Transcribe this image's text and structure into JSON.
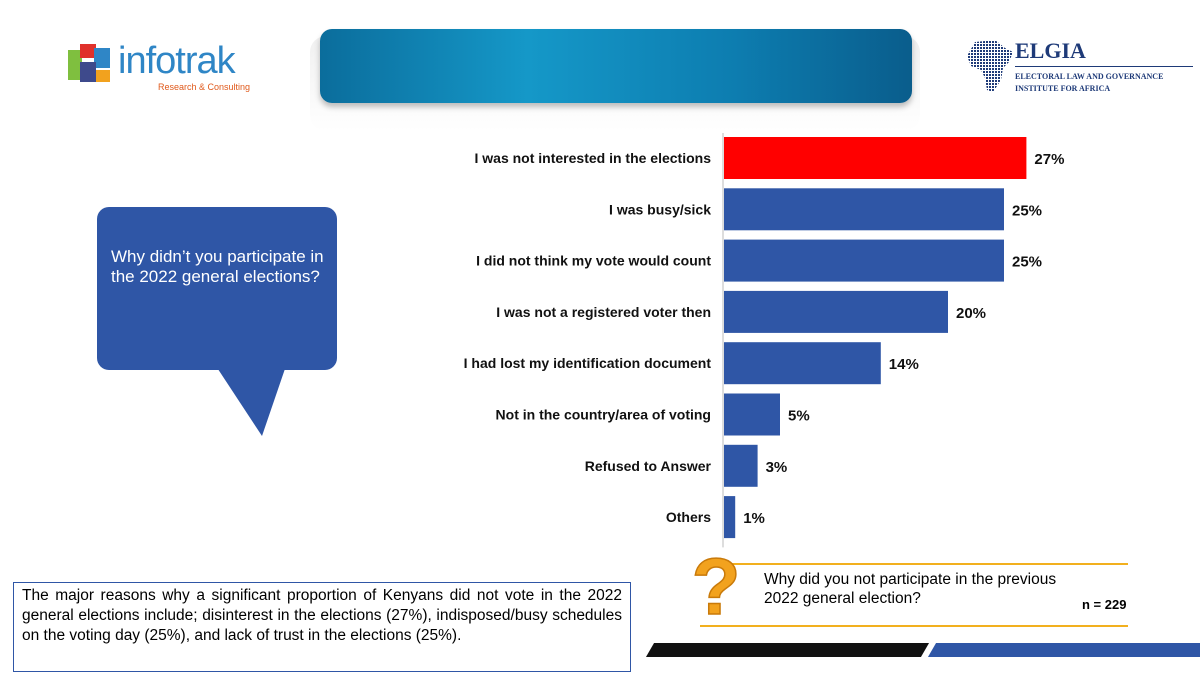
{
  "logos": {
    "infotrak_word": "infotrak",
    "infotrak_sub": "Research & Consulting",
    "elgia_name": "ELGIA",
    "elgia_line1": "ELECTORAL LAW AND GOVERNANCE",
    "elgia_line2": "INSTITUTE FOR AFRICA"
  },
  "question_bubble": "Why didn’t you participate in the 2022 general elections?",
  "summary": "The major reasons why a significant proportion of Kenyans did not vote in the 2022 general elections include;  disinterest in the elections (27%), indisposed/busy schedules on the voting day (25%), and lack of trust in the elections (25%).",
  "footer": {
    "question": "Why did you not participate in the previous 2022 general election?",
    "sample_size": "n = 229",
    "question_mark_icon": "question-mark-icon"
  },
  "colors": {
    "bar": "#2f56a6",
    "highlight": "#ff0000",
    "accent_gold": "#f2b01e"
  },
  "chart_data": {
    "type": "bar",
    "orientation": "horizontal",
    "categories": [
      "I was not interested in the elections",
      "I was busy/sick",
      "I did not think my vote would count",
      "I was not a registered voter then",
      "I had lost my identification document",
      "Not in the country/area of voting",
      "Refused to Answer",
      "Others"
    ],
    "values": [
      27,
      25,
      25,
      20,
      14,
      5,
      3,
      1
    ],
    "value_labels": [
      "27%",
      "25%",
      "25%",
      "20%",
      "14%",
      "5%",
      "3%",
      "1%"
    ],
    "highlighted_index": 0,
    "unit": "%"
  }
}
